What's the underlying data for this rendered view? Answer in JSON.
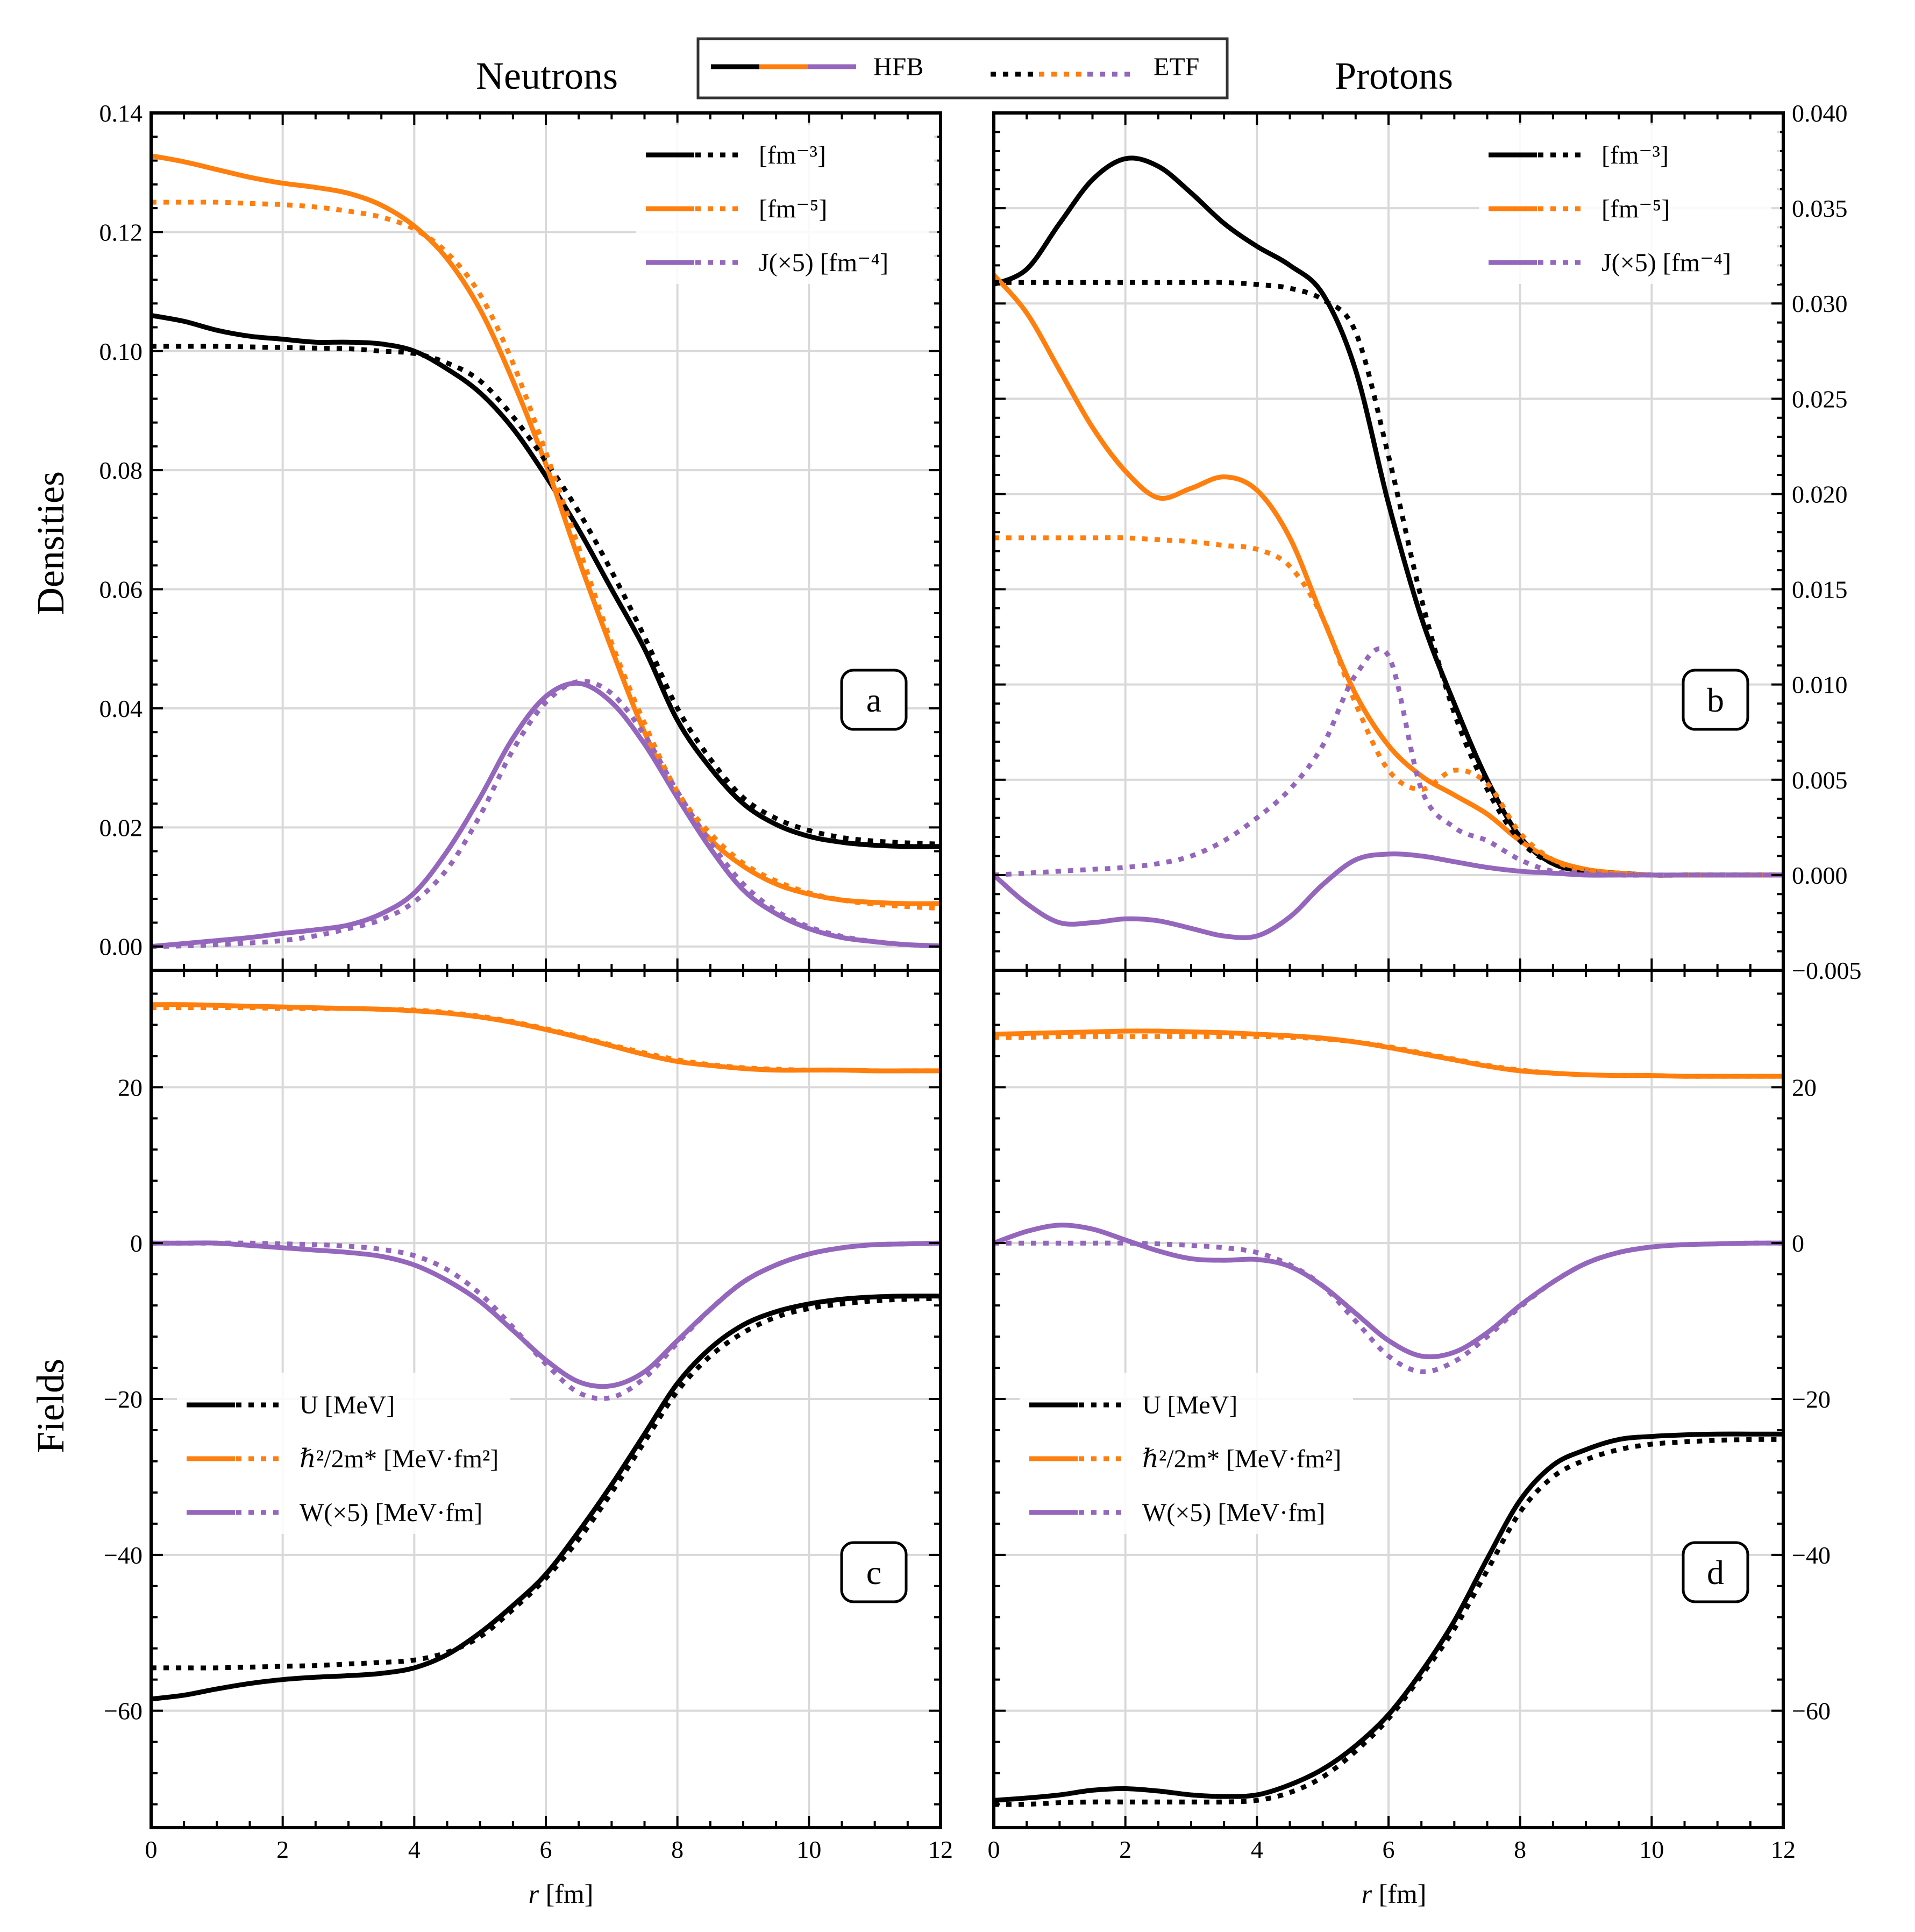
{
  "figure": {
    "titles": {
      "left": "Neutrons",
      "right": "Protons"
    },
    "legend": {
      "hfb_label": "HFB",
      "etf_label": "ETF"
    },
    "ylabel_top": "Densities",
    "ylabel_bottom": "Fields",
    "xlabel_italic": "r",
    "xlabel_unit": " [fm]",
    "colors": {
      "rho": "#000000",
      "tau": "#ff7f0e",
      "spin": "#9467bd",
      "grid": "#d9d9d9"
    }
  },
  "chart_data": [
    {
      "panel": "a",
      "type": "line",
      "title": "Neutrons",
      "ylabel": "Densities",
      "xlabel": "r [fm]",
      "xlim": [
        0,
        12
      ],
      "ylim": [
        -0.004,
        0.14
      ],
      "xticks": [
        "0",
        "2",
        "4",
        "6",
        "8",
        "10",
        "12"
      ],
      "yticks": [
        "0.00",
        "0.02",
        "0.04",
        "0.06",
        "0.08",
        "0.10",
        "0.12",
        "0.14"
      ],
      "legend": [
        "[fm⁻³]",
        "[fm⁻⁵]",
        "J(×5) [fm⁻⁴]"
      ],
      "x": [
        0,
        0.5,
        1,
        1.5,
        2,
        2.5,
        3,
        3.5,
        4,
        4.5,
        5,
        5.5,
        6,
        6.5,
        7,
        7.5,
        8,
        8.5,
        9,
        9.5,
        10,
        10.5,
        11,
        11.5,
        12
      ],
      "series": [
        {
          "name": "rho HFB",
          "quantity": "rho",
          "model": "HFB",
          "values": [
            0.106,
            0.105,
            0.1035,
            0.1025,
            0.102,
            0.1015,
            0.1015,
            0.1012,
            0.1,
            0.097,
            0.093,
            0.087,
            0.079,
            0.07,
            0.06,
            0.05,
            0.038,
            0.03,
            0.024,
            0.0205,
            0.0185,
            0.0175,
            0.017,
            0.0168,
            0.0168
          ]
        },
        {
          "name": "rho ETF",
          "quantity": "rho",
          "model": "ETF",
          "values": [
            0.1008,
            0.1008,
            0.1008,
            0.1007,
            0.1006,
            0.1005,
            0.1004,
            0.1,
            0.0996,
            0.098,
            0.095,
            0.089,
            0.0815,
            0.073,
            0.063,
            0.052,
            0.04,
            0.0315,
            0.025,
            0.0215,
            0.0195,
            0.0183,
            0.0177,
            0.0174,
            0.0172
          ]
        },
        {
          "name": "tau HFB",
          "quantity": "tau",
          "model": "HFB",
          "values": [
            0.1328,
            0.1318,
            0.1305,
            0.1292,
            0.1282,
            0.1275,
            0.1265,
            0.1245,
            0.121,
            0.1155,
            0.107,
            0.095,
            0.081,
            0.065,
            0.05,
            0.036,
            0.025,
            0.018,
            0.0135,
            0.0105,
            0.0088,
            0.0078,
            0.0074,
            0.0072,
            0.0072
          ]
        },
        {
          "name": "tau ETF",
          "quantity": "tau",
          "model": "ETF",
          "values": [
            0.125,
            0.125,
            0.125,
            0.1248,
            0.1246,
            0.1242,
            0.1235,
            0.1225,
            0.1205,
            0.1165,
            0.1095,
            0.098,
            0.083,
            0.067,
            0.051,
            0.0375,
            0.026,
            0.019,
            0.014,
            0.011,
            0.009,
            0.0078,
            0.0071,
            0.0067,
            0.0064
          ]
        },
        {
          "name": "J HFB",
          "quantity": "J",
          "model": "HFB",
          "values": [
            0,
            0.0005,
            0.001,
            0.0015,
            0.0022,
            0.0028,
            0.0036,
            0.0055,
            0.009,
            0.016,
            0.025,
            0.035,
            0.042,
            0.0442,
            0.041,
            0.034,
            0.025,
            0.0165,
            0.0095,
            0.0055,
            0.003,
            0.0015,
            0.0008,
            0.0003,
            0.0001
          ]
        },
        {
          "name": "J ETF",
          "quantity": "J",
          "model": "ETF",
          "values": [
            0,
            0.0001,
            0.0003,
            0.0006,
            0.001,
            0.0018,
            0.003,
            0.0045,
            0.0075,
            0.013,
            0.022,
            0.033,
            0.041,
            0.0445,
            0.0425,
            0.0355,
            0.026,
            0.0175,
            0.0105,
            0.006,
            0.0033,
            0.0017,
            0.0008,
            0.0003,
            0.0001
          ]
        }
      ]
    },
    {
      "panel": "b",
      "type": "line",
      "title": "Protons",
      "ylabel": "",
      "xlabel": "r [fm]",
      "xlim": [
        0,
        12
      ],
      "ylim": [
        -0.005,
        0.04
      ],
      "xticks": [
        "0",
        "2",
        "4",
        "6",
        "8",
        "10",
        "12"
      ],
      "yticks": [
        "−0.005",
        "0.000",
        "0.005",
        "0.010",
        "0.015",
        "0.020",
        "0.025",
        "0.030",
        "0.035",
        "0.040"
      ],
      "legend": [
        "[fm⁻³]",
        "[fm⁻⁵]",
        "J(×5) [fm⁻⁴]"
      ],
      "x": [
        0,
        0.5,
        1,
        1.5,
        2,
        2.5,
        3,
        3.5,
        4,
        4.5,
        5,
        5.5,
        6,
        6.5,
        7,
        7.5,
        8,
        8.5,
        9,
        9.5,
        10,
        10.5,
        11,
        11.5,
        12
      ],
      "series": [
        {
          "name": "rho HFB",
          "quantity": "rho",
          "model": "HFB",
          "values": [
            0.031,
            0.0318,
            0.0342,
            0.0365,
            0.0376,
            0.0372,
            0.0358,
            0.0342,
            0.033,
            0.032,
            0.0305,
            0.0265,
            0.0195,
            0.0135,
            0.009,
            0.005,
            0.002,
            0.0006,
            0.0002,
            0.0001,
            0.0,
            0.0,
            0.0,
            0.0,
            0.0
          ]
        },
        {
          "name": "rho ETF",
          "quantity": "rho",
          "model": "ETF",
          "values": [
            0.0311,
            0.0311,
            0.0311,
            0.0311,
            0.0311,
            0.0311,
            0.0311,
            0.0311,
            0.031,
            0.0308,
            0.0302,
            0.0285,
            0.022,
            0.0145,
            0.0085,
            0.0045,
            0.0018,
            0.0006,
            0.0002,
            0.0001,
            0.0,
            0.0,
            0.0,
            0.0,
            0.0
          ]
        },
        {
          "name": "tau HFB",
          "quantity": "tau",
          "model": "HFB",
          "values": [
            0.0315,
            0.0295,
            0.0265,
            0.0235,
            0.0212,
            0.0198,
            0.0203,
            0.0209,
            0.0202,
            0.0177,
            0.0135,
            0.0095,
            0.0068,
            0.0052,
            0.0042,
            0.0032,
            0.0018,
            0.0008,
            0.0003,
            0.0001,
            0.0,
            0.0,
            0.0,
            0.0,
            0.0
          ]
        },
        {
          "name": "tau ETF",
          "quantity": "tau",
          "model": "ETF",
          "values": [
            0.0177,
            0.0177,
            0.0177,
            0.0177,
            0.0177,
            0.0176,
            0.0175,
            0.0173,
            0.0171,
            0.0162,
            0.0135,
            0.009,
            0.0055,
            0.0045,
            0.0055,
            0.0048,
            0.0022,
            0.0008,
            0.0002,
            0.0001,
            0.0,
            0.0,
            0.0,
            0.0,
            0.0
          ]
        },
        {
          "name": "J HFB",
          "quantity": "J",
          "model": "HFB",
          "values": [
            0,
            -0.0015,
            -0.0025,
            -0.0025,
            -0.0023,
            -0.0024,
            -0.0028,
            -0.0032,
            -0.0032,
            -0.0022,
            -0.0005,
            0.0008,
            0.0011,
            0.001,
            0.0007,
            0.0004,
            0.0002,
            0.0001,
            0.0,
            0.0,
            0.0,
            0.0,
            0.0,
            0.0,
            0.0
          ]
        },
        {
          "name": "J ETF",
          "quantity": "J",
          "model": "ETF",
          "values": [
            0,
            0.0001,
            0.0002,
            0.0003,
            0.0004,
            0.0006,
            0.001,
            0.0018,
            0.003,
            0.0045,
            0.0068,
            0.0105,
            0.0115,
            0.0045,
            0.0025,
            0.0018,
            0.0008,
            0.0002,
            0.0001,
            0.0,
            0.0,
            0.0,
            0.0,
            0.0,
            0.0
          ]
        }
      ]
    },
    {
      "panel": "c",
      "type": "line",
      "title": "",
      "ylabel": "Fields",
      "xlabel": "r [fm]",
      "xlim": [
        0,
        12
      ],
      "ylim": [
        -75,
        35
      ],
      "xticks": [
        "0",
        "2",
        "4",
        "6",
        "8",
        "10",
        "12"
      ],
      "yticks": [
        "−60",
        "−40",
        "−20",
        "0",
        "20"
      ],
      "legend": [
        "U [MeV]",
        "ℏ²/2m* [MeV·fm²]",
        "W(×5) [MeV·fm]"
      ],
      "x": [
        0,
        0.5,
        1,
        1.5,
        2,
        2.5,
        3,
        3.5,
        4,
        4.5,
        5,
        5.5,
        6,
        6.5,
        7,
        7.5,
        8,
        8.5,
        9,
        9.5,
        10,
        10.5,
        11,
        11.5,
        12
      ],
      "series": [
        {
          "name": "U HFB",
          "quantity": "U",
          "model": "HFB",
          "values": [
            -58.5,
            -58,
            -57.2,
            -56.5,
            -56,
            -55.7,
            -55.5,
            -55.2,
            -54.5,
            -52.8,
            -50,
            -46.5,
            -42.5,
            -37,
            -31,
            -24.5,
            -18,
            -13.5,
            -10.5,
            -8.8,
            -7.8,
            -7.2,
            -6.9,
            -6.8,
            -6.8
          ]
        },
        {
          "name": "U ETF",
          "quantity": "U",
          "model": "ETF",
          "values": [
            -54.5,
            -54.5,
            -54.5,
            -54.4,
            -54.3,
            -54.2,
            -54,
            -53.8,
            -53.5,
            -52.5,
            -50.5,
            -47,
            -43,
            -38,
            -32,
            -25.5,
            -19,
            -14.5,
            -11.5,
            -9.5,
            -8.4,
            -7.8,
            -7.4,
            -7.2,
            -7.1
          ]
        },
        {
          "name": "hbar2m HFB",
          "quantity": "h2m",
          "model": "HFB",
          "values": [
            30.6,
            30.6,
            30.5,
            30.4,
            30.3,
            30.2,
            30.1,
            30,
            29.8,
            29.5,
            29,
            28.3,
            27.4,
            26.4,
            25.3,
            24.2,
            23.3,
            22.8,
            22.4,
            22.2,
            22.2,
            22.2,
            22.1,
            22.1,
            22.1
          ]
        },
        {
          "name": "hbar2m ETF",
          "quantity": "h2m",
          "model": "ETF",
          "values": [
            30.2,
            30.2,
            30.2,
            30.2,
            30.1,
            30.1,
            30.1,
            30,
            29.9,
            29.6,
            29.1,
            28.4,
            27.5,
            26.5,
            25.4,
            24.4,
            23.5,
            22.9,
            22.5,
            22.3,
            22.2,
            22.2,
            22.1,
            22.1,
            22.1
          ]
        },
        {
          "name": "W HFB",
          "quantity": "W",
          "model": "HFB",
          "values": [
            0,
            0,
            0,
            -0.3,
            -0.6,
            -0.9,
            -1.2,
            -1.7,
            -2.8,
            -4.8,
            -7.5,
            -11.2,
            -15,
            -17.8,
            -18.3,
            -16.5,
            -12.5,
            -8.5,
            -5,
            -2.8,
            -1.4,
            -0.6,
            -0.2,
            -0.1,
            0
          ]
        },
        {
          "name": "W ETF",
          "quantity": "W",
          "model": "ETF",
          "values": [
            0,
            0,
            0,
            0,
            -0.1,
            -0.2,
            -0.4,
            -0.8,
            -1.6,
            -3.4,
            -6.5,
            -10.8,
            -15.5,
            -19.2,
            -19.8,
            -17.3,
            -12.8,
            -8.5,
            -5,
            -2.8,
            -1.4,
            -0.6,
            -0.2,
            -0.1,
            0
          ]
        }
      ]
    },
    {
      "panel": "d",
      "type": "line",
      "title": "",
      "ylabel": "",
      "xlabel": "r [fm]",
      "xlim": [
        0,
        12
      ],
      "ylim": [
        -75,
        35
      ],
      "xticks": [
        "0",
        "2",
        "4",
        "6",
        "8",
        "10",
        "12"
      ],
      "yticks": [
        "−60",
        "−40",
        "−20",
        "0",
        "20"
      ],
      "legend": [
        "U [MeV]",
        "ℏ²/2m* [MeV·fm²]",
        "W(×5) [MeV·fm]"
      ],
      "x": [
        0,
        0.5,
        1,
        1.5,
        2,
        2.5,
        3,
        3.5,
        4,
        4.5,
        5,
        5.5,
        6,
        6.5,
        7,
        7.5,
        8,
        8.5,
        9,
        9.5,
        10,
        10.5,
        11,
        11.5,
        12
      ],
      "series": [
        {
          "name": "U HFB",
          "quantity": "U",
          "model": "HFB",
          "values": [
            -71.5,
            -71.2,
            -70.8,
            -70.2,
            -70,
            -70.3,
            -70.8,
            -71,
            -70.8,
            -69.5,
            -67.5,
            -64.5,
            -60.5,
            -55,
            -48.5,
            -40.5,
            -33,
            -28.5,
            -26.5,
            -25.2,
            -24.8,
            -24.6,
            -24.5,
            -24.5,
            -24.5
          ]
        },
        {
          "name": "U ETF",
          "quantity": "U",
          "model": "ETF",
          "values": [
            -72,
            -72,
            -71.8,
            -71.7,
            -71.7,
            -71.7,
            -71.7,
            -71.7,
            -71.5,
            -70.5,
            -68.5,
            -65.2,
            -61,
            -55.5,
            -49.5,
            -42,
            -34.5,
            -30,
            -27.8,
            -26.5,
            -25.8,
            -25.5,
            -25.3,
            -25.2,
            -25.2
          ]
        },
        {
          "name": "hbar2m HFB",
          "quantity": "h2m",
          "model": "HFB",
          "values": [
            26.8,
            26.9,
            27,
            27.1,
            27.2,
            27.2,
            27.1,
            27,
            26.8,
            26.6,
            26.3,
            25.8,
            25.1,
            24.3,
            23.5,
            22.7,
            22.1,
            21.8,
            21.6,
            21.5,
            21.5,
            21.4,
            21.4,
            21.4,
            21.4
          ]
        },
        {
          "name": "hbar2m ETF",
          "quantity": "h2m",
          "model": "ETF",
          "values": [
            26.4,
            26.4,
            26.5,
            26.5,
            26.5,
            26.5,
            26.5,
            26.5,
            26.5,
            26.4,
            26.2,
            25.8,
            25.2,
            24.4,
            23.6,
            22.8,
            22.2,
            21.8,
            21.6,
            21.5,
            21.5,
            21.4,
            21.4,
            21.4,
            21.4
          ]
        },
        {
          "name": "W HFB",
          "quantity": "W",
          "model": "HFB",
          "values": [
            0,
            1.5,
            2.3,
            1.8,
            0.4,
            -1,
            -2,
            -2.2,
            -2.1,
            -3,
            -5.5,
            -9,
            -12.5,
            -14.5,
            -14,
            -11.5,
            -8,
            -5,
            -2.6,
            -1.2,
            -0.5,
            -0.2,
            -0.1,
            0,
            0
          ]
        },
        {
          "name": "W ETF",
          "quantity": "W",
          "model": "ETF",
          "values": [
            0,
            0,
            0,
            0,
            0,
            -0.1,
            -0.3,
            -0.6,
            -1.2,
            -2.8,
            -5.5,
            -10,
            -14.5,
            -16.5,
            -15.2,
            -12,
            -8.2,
            -5,
            -2.6,
            -1.2,
            -0.5,
            -0.2,
            -0.1,
            0,
            0
          ]
        }
      ]
    }
  ]
}
